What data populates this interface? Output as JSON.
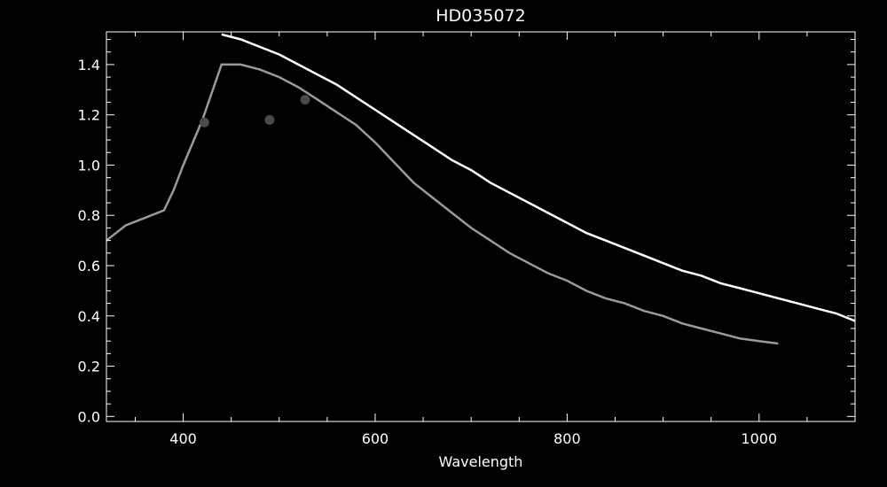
{
  "chart_data": {
    "type": "line",
    "title": "HD035072",
    "xlabel": "Wavelength",
    "ylabel": "",
    "xlim": [
      320,
      1100
    ],
    "ylim": [
      -0.02,
      1.53
    ],
    "x_ticks": [
      400,
      600,
      800,
      1000
    ],
    "y_ticks": [
      0.0,
      0.2,
      0.4,
      0.6,
      0.8,
      1.0,
      1.2,
      1.4
    ],
    "y_tick_labels": [
      "0.0",
      "0.2",
      "0.4",
      "0.6",
      "0.8",
      "1.0",
      "1.2",
      "1.4"
    ],
    "background": "#000000",
    "foreground": "#ffffff",
    "grid": false,
    "series": [
      {
        "color": "#ffffff",
        "x": [
          440,
          450,
          460,
          480,
          500,
          520,
          540,
          560,
          580,
          600,
          620,
          640,
          660,
          680,
          700,
          720,
          740,
          760,
          780,
          800,
          820,
          840,
          860,
          880,
          900,
          920,
          940,
          960,
          980,
          1000,
          1020,
          1040,
          1060,
          1080,
          1100
        ],
        "y": [
          1.52,
          1.51,
          1.5,
          1.47,
          1.44,
          1.4,
          1.36,
          1.32,
          1.27,
          1.22,
          1.17,
          1.12,
          1.07,
          1.02,
          0.98,
          0.93,
          0.89,
          0.85,
          0.81,
          0.77,
          0.73,
          0.7,
          0.67,
          0.64,
          0.61,
          0.58,
          0.56,
          0.53,
          0.51,
          0.49,
          0.47,
          0.45,
          0.43,
          0.41,
          0.38
        ]
      },
      {
        "color": "#9a9a9a",
        "x": [
          320,
          340,
          360,
          380,
          390,
          400,
          420,
          440,
          460,
          480,
          500,
          520,
          540,
          560,
          580,
          600,
          620,
          640,
          660,
          680,
          700,
          720,
          740,
          760,
          780,
          800,
          820,
          840,
          860,
          880,
          900,
          920,
          940,
          960,
          980,
          1000,
          1020
        ],
        "y": [
          0.7,
          0.76,
          0.79,
          0.82,
          0.9,
          1.0,
          1.18,
          1.4,
          1.4,
          1.38,
          1.35,
          1.31,
          1.26,
          1.21,
          1.16,
          1.09,
          1.01,
          0.93,
          0.87,
          0.81,
          0.75,
          0.7,
          0.65,
          0.61,
          0.57,
          0.54,
          0.5,
          0.47,
          0.45,
          0.42,
          0.4,
          0.37,
          0.35,
          0.33,
          0.31,
          0.3,
          0.29
        ]
      }
    ],
    "points": {
      "color": "#4a4a4a",
      "x": [
        422,
        490,
        527
      ],
      "y": [
        1.17,
        1.18,
        1.26
      ]
    }
  }
}
